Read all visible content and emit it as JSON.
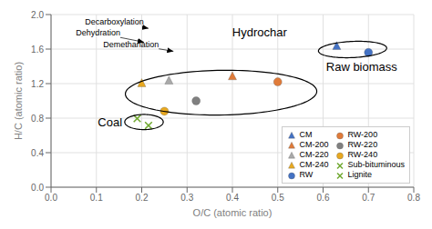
{
  "chart_data": {
    "type": "scatter",
    "xlabel": "O/C (atomic ratio)",
    "ylabel": "H/C (atomic ratio)",
    "xlim": [
      0.0,
      0.8
    ],
    "ylim": [
      0.0,
      2.0
    ],
    "xticks": [
      {
        "value": 0,
        "label": "0.0"
      },
      0.1,
      0.2,
      0.3,
      0.4,
      0.5,
      0.6,
      0.7,
      0.8
    ],
    "yticks": [
      {
        "value": 0,
        "label": "0.0"
      },
      0.4,
      0.8,
      1.2,
      1.6,
      {
        "value": 2,
        "label": "2.0"
      }
    ],
    "grid": true,
    "legend": "lower right",
    "series": [
      {
        "name": "CM",
        "color": "#4472c4",
        "marker": "triangle",
        "x": [
          0.63
        ],
        "y": [
          1.63
        ]
      },
      {
        "name": "CM-200",
        "color": "#e07b39",
        "marker": "triangle",
        "x": [
          0.4
        ],
        "y": [
          1.28
        ]
      },
      {
        "name": "CM-220",
        "color": "#a9a9a9",
        "marker": "triangle",
        "x": [
          0.26
        ],
        "y": [
          1.23
        ]
      },
      {
        "name": "CM-240",
        "color": "#e8a820",
        "marker": "triangle",
        "x": [
          0.2
        ],
        "y": [
          1.2
        ]
      },
      {
        "name": "RW",
        "color": "#4472c4",
        "marker": "circle",
        "x": [
          0.7
        ],
        "y": [
          1.56
        ]
      },
      {
        "name": "RW-200",
        "color": "#e07b39",
        "marker": "circle",
        "x": [
          0.5
        ],
        "y": [
          1.22
        ]
      },
      {
        "name": "RW-220",
        "color": "#808080",
        "marker": "circle",
        "x": [
          0.32
        ],
        "y": [
          1.0
        ]
      },
      {
        "name": "RW-240",
        "color": "#e8a820",
        "marker": "circle",
        "x": [
          0.25
        ],
        "y": [
          0.88
        ]
      },
      {
        "name": "Sub-bituminous",
        "color": "#70a830",
        "marker": "x",
        "x": [
          0.19
        ],
        "y": [
          0.795
        ]
      },
      {
        "name": "Lignite",
        "color": "#70a830",
        "marker": "x",
        "x": [
          0.215
        ],
        "y": [
          0.715
        ]
      }
    ],
    "ellipses": [
      {
        "cx": 0.375,
        "cy": 1.095,
        "w": 0.42,
        "h": 0.52,
        "angle": -8
      },
      {
        "cx": 0.665,
        "cy": 1.595,
        "w": 0.145,
        "h": 0.195,
        "angle": -18
      },
      {
        "cx": 0.205,
        "cy": 0.755,
        "w": 0.085,
        "h": 0.175,
        "angle": 0
      }
    ],
    "region_labels": [
      {
        "text": "Hydrochar",
        "x": 0.46,
        "y": 1.8
      },
      {
        "text": "Raw biomass",
        "x": 0.685,
        "y": 1.4
      },
      {
        "text": "Coal",
        "x": 0.13,
        "y": 0.755
      }
    ],
    "annotations": [
      {
        "text": "Decarboxylation",
        "x": 0.075,
        "y": 1.915,
        "arrow_x": 0.215,
        "arrow_y": 1.84
      },
      {
        "text": "Dehydration",
        "x": 0.055,
        "y": 1.785,
        "arrow_x": 0.205,
        "arrow_y": 1.68
      },
      {
        "text": "Demethanation",
        "x": 0.115,
        "y": 1.655,
        "arrow_x": 0.27,
        "arrow_y": 1.575
      }
    ]
  }
}
